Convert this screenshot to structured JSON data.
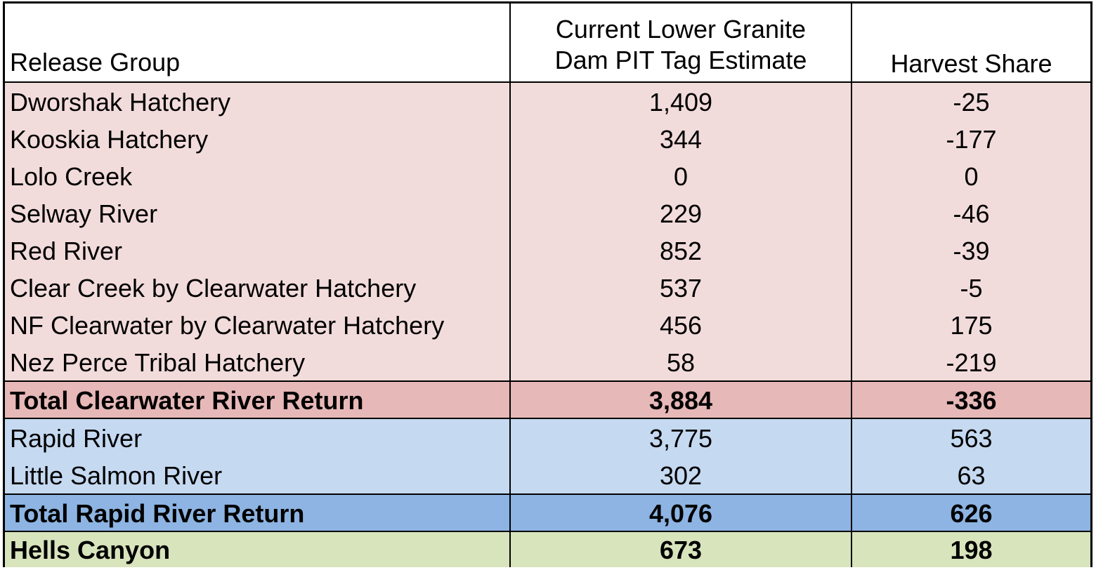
{
  "table": {
    "headers": {
      "release_group": "Release Group",
      "estimate_line1": "Current Lower Granite",
      "estimate_line2": "Dam PIT Tag Estimate",
      "harvest_share": "Harvest Share"
    },
    "colors": {
      "clearwater_rows": "#f2dcdb",
      "clearwater_total": "#e6b8b7",
      "rapid_rows": "#c5d9f1",
      "rapid_total": "#8db4e2",
      "hells_canyon": "#d8e4bc"
    },
    "clearwater_rows": [
      {
        "group": "Dworshak Hatchery",
        "estimate": "1,409",
        "harvest": "-25"
      },
      {
        "group": "Kooskia Hatchery",
        "estimate": "344",
        "harvest": "-177"
      },
      {
        "group": "Lolo Creek",
        "estimate": "0",
        "harvest": "0"
      },
      {
        "group": "Selway River",
        "estimate": "229",
        "harvest": "-46"
      },
      {
        "group": "Red River",
        "estimate": "852",
        "harvest": "-39"
      },
      {
        "group": "Clear Creek by Clearwater Hatchery",
        "estimate": "537",
        "harvest": "-5"
      },
      {
        "group": "NF Clearwater by Clearwater Hatchery",
        "estimate": "456",
        "harvest": "175"
      },
      {
        "group": "Nez Perce Tribal Hatchery",
        "estimate": "58",
        "harvest": "-219"
      }
    ],
    "clearwater_total": {
      "group": "Total Clearwater River Return",
      "estimate": "3,884",
      "harvest": "-336"
    },
    "rapid_rows": [
      {
        "group": "Rapid River",
        "estimate": "3,775",
        "harvest": "563"
      },
      {
        "group": "Little Salmon River",
        "estimate": "302",
        "harvest": "63"
      }
    ],
    "rapid_total": {
      "group": "Total Rapid River Return",
      "estimate": "4,076",
      "harvest": "626"
    },
    "hells_canyon": {
      "group": "Hells Canyon",
      "estimate": "673",
      "harvest": "198"
    }
  }
}
